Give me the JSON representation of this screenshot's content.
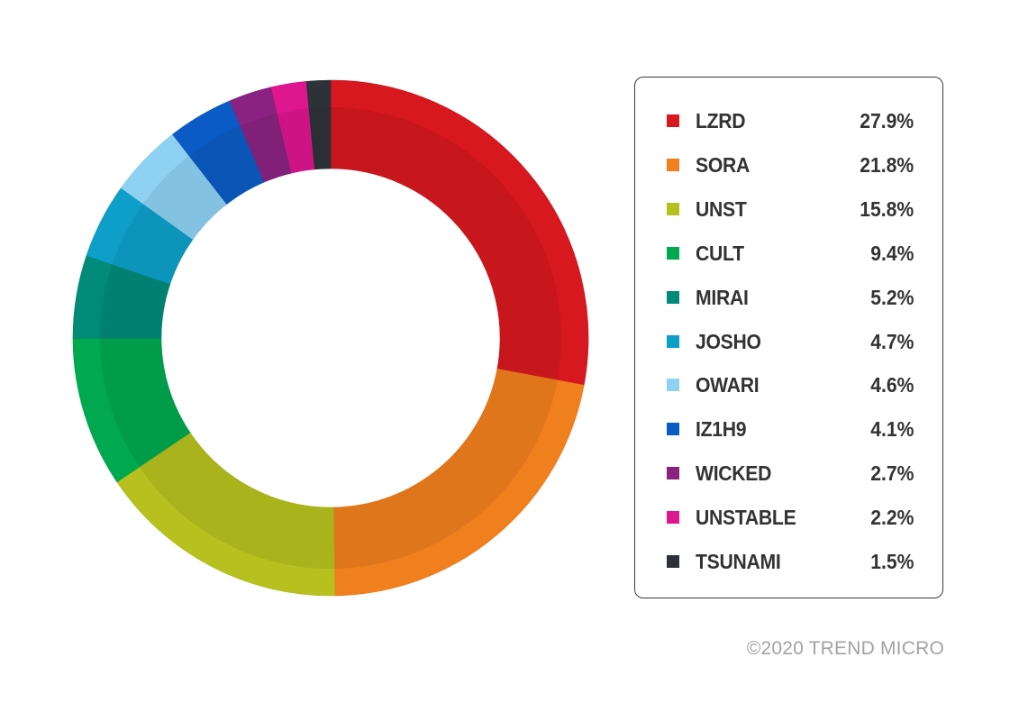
{
  "chart_data": {
    "type": "pie",
    "subtype": "donut",
    "legend_placement": "right",
    "categories": [
      "LZRD",
      "SORA",
      "UNST",
      "CULT",
      "MIRAI",
      "JOSHO",
      "OWARI",
      "IZ1H9",
      "WICKED",
      "UNSTABLE",
      "TSUNAMI"
    ],
    "values": [
      27.9,
      21.8,
      15.8,
      9.4,
      5.2,
      4.7,
      4.6,
      4.1,
      2.7,
      2.2,
      1.5
    ],
    "value_labels": [
      "27.9%",
      "21.8%",
      "15.8%",
      "9.4%",
      "5.2%",
      "4.7%",
      "4.6%",
      "4.1%",
      "2.7%",
      "2.2%",
      "1.5%"
    ],
    "colors": [
      "#d7181f",
      "#f07f1d",
      "#b6c01e",
      "#00a84f",
      "#008a78",
      "#0e9fc9",
      "#8ed1f3",
      "#0b5bc4",
      "#8a2281",
      "#de168f",
      "#2c3238"
    ],
    "start": "12 o'clock",
    "direction": "clockwise"
  },
  "footer": {
    "copyright": "©2020 TREND MICRO"
  }
}
